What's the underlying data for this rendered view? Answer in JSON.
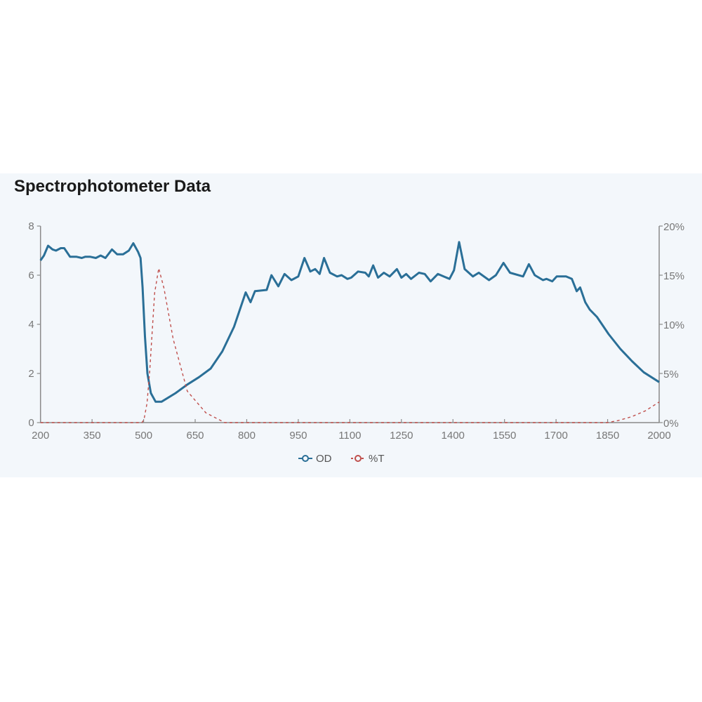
{
  "chart_data": {
    "type": "line",
    "title": "Spectrophotometer Data",
    "xlabel": "",
    "ylabel": "",
    "xlim": [
      200,
      2000
    ],
    "ylim": [
      0,
      8
    ],
    "y2lim": [
      0,
      20
    ],
    "x_ticks": [
      "200",
      "350",
      "500",
      "650",
      "800",
      "950",
      "1100",
      "1250",
      "1400",
      "1550",
      "1700",
      "1850",
      "2000"
    ],
    "y_ticks": [
      "0",
      "2",
      "4",
      "6",
      "8"
    ],
    "y2_ticks": [
      "0%",
      "5%",
      "10%",
      "15%",
      "20%"
    ],
    "legend": {
      "placement": "bottom-center",
      "entries": [
        "OD",
        "%T"
      ]
    },
    "colors": {
      "OD": "#2a6f97",
      "%T": "#c0504d"
    },
    "series": [
      {
        "name": "OD",
        "axis": "left",
        "x": [
          200,
          210,
          222,
          235,
          245,
          259,
          269,
          286,
          305,
          320,
          330,
          345,
          361,
          375,
          389,
          408,
          423,
          440,
          457,
          470,
          484,
          491,
          497,
          504,
          511,
          521,
          535,
          552,
          593,
          627,
          661,
          695,
          729,
          763,
          797,
          811,
          824,
          858,
          872,
          892,
          910,
          930,
          950,
          968,
          985,
          999,
          1012,
          1025,
          1042,
          1063,
          1076,
          1093,
          1104,
          1124,
          1145,
          1155,
          1168,
          1182,
          1199,
          1216,
          1237,
          1250,
          1264,
          1278,
          1301,
          1318,
          1335,
          1356,
          1390,
          1403,
          1418,
          1434,
          1458,
          1475,
          1505,
          1525,
          1547,
          1566,
          1604,
          1621,
          1638,
          1662,
          1672,
          1689,
          1702,
          1729,
          1746,
          1760,
          1770,
          1785,
          1798,
          1819,
          1853,
          1887,
          1921,
          1955,
          2000
        ],
        "y": [
          6.6,
          6.8,
          7.2,
          7.05,
          7.0,
          7.1,
          7.1,
          6.75,
          6.75,
          6.7,
          6.75,
          6.75,
          6.7,
          6.8,
          6.7,
          7.05,
          6.85,
          6.85,
          7.0,
          7.3,
          6.95,
          6.7,
          5.5,
          3.5,
          2.0,
          1.2,
          0.85,
          0.85,
          1.2,
          1.55,
          1.85,
          2.2,
          2.9,
          3.9,
          5.3,
          4.9,
          5.35,
          5.4,
          6.0,
          5.55,
          6.05,
          5.8,
          5.95,
          6.7,
          6.15,
          6.25,
          6.05,
          6.7,
          6.1,
          5.95,
          6.0,
          5.85,
          5.9,
          6.15,
          6.1,
          5.95,
          6.4,
          5.9,
          6.1,
          5.95,
          6.25,
          5.9,
          6.05,
          5.85,
          6.1,
          6.05,
          5.75,
          6.05,
          5.85,
          6.2,
          7.35,
          6.25,
          5.95,
          6.1,
          5.8,
          6.0,
          6.5,
          6.1,
          5.95,
          6.45,
          6.0,
          5.8,
          5.85,
          5.75,
          5.95,
          5.95,
          5.85,
          5.35,
          5.5,
          4.9,
          4.6,
          4.3,
          3.6,
          3.0,
          2.5,
          2.05,
          1.65
        ]
      },
      {
        "name": "%T",
        "axis": "right",
        "x": [
          200,
          495,
          501,
          510,
          518,
          532,
          544,
          559,
          586,
          627,
          681,
          736,
          1850,
          1880,
          1920,
          1960,
          2000
        ],
        "y": [
          0,
          0,
          0.3,
          2.0,
          5.4,
          13.2,
          15.7,
          13.7,
          8.5,
          3.2,
          1.0,
          0,
          0,
          0.2,
          0.6,
          1.2,
          2.1
        ]
      }
    ]
  }
}
